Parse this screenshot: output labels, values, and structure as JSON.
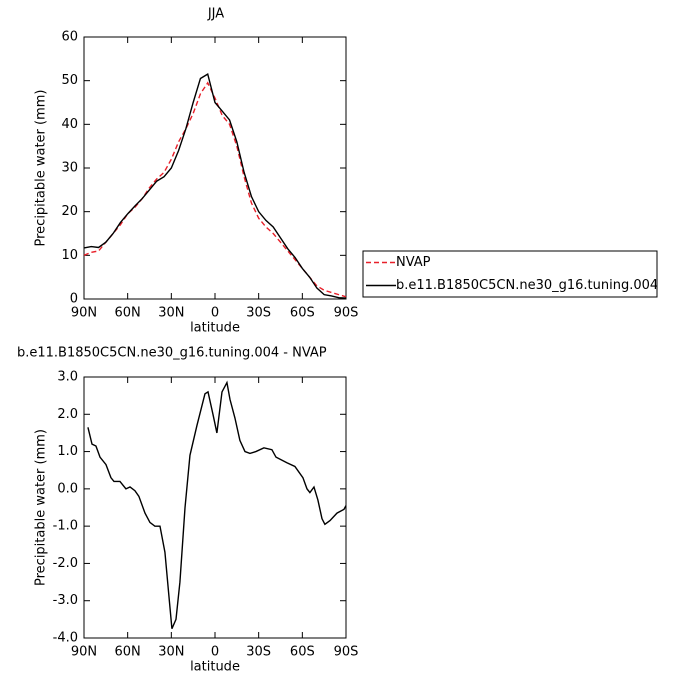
{
  "chart_data": [
    {
      "type": "line",
      "title": "JJA",
      "xlabel": "latitude",
      "ylabel": "Precipitable water (mm)",
      "x": [
        90,
        85,
        80,
        75,
        70,
        65,
        60,
        55,
        50,
        45,
        40,
        35,
        30,
        25,
        20,
        15,
        10,
        5,
        0,
        -5,
        -10,
        -15,
        -20,
        -25,
        -30,
        -35,
        -40,
        -45,
        -50,
        -55,
        -60,
        -65,
        -70,
        -75,
        -80,
        -85,
        -90
      ],
      "series": [
        {
          "name": "NVAP",
          "color": "#e8202a",
          "dash": true,
          "values": [
            10,
            10.7,
            11,
            13,
            15,
            17,
            19.5,
            21,
            23,
            25.5,
            27.5,
            29,
            32,
            36,
            39,
            42.5,
            47,
            49.5,
            46,
            42,
            40,
            35,
            28,
            22,
            18.5,
            16.5,
            15,
            13,
            11,
            9,
            7,
            5,
            3,
            2,
            1.5,
            1,
            0.5
          ]
        },
        {
          "name": "b.e11.B1850C5CN.ne30_g16.tuning.004",
          "color": "#000000",
          "dash": false,
          "values": [
            11.7,
            12,
            11.8,
            13,
            15,
            17.5,
            19.5,
            21.3,
            23,
            25,
            27,
            28,
            30,
            34,
            39,
            45,
            50.5,
            51.5,
            45,
            43,
            41,
            36,
            29,
            23.5,
            20,
            18,
            16.5,
            14,
            11.5,
            9.5,
            7,
            5,
            2.5,
            1,
            0.7,
            0.3,
            0.2
          ]
        }
      ],
      "xlim": [
        90,
        -90
      ],
      "xticks": [
        {
          "value": 90,
          "label": "90N"
        },
        {
          "value": 60,
          "label": "60N"
        },
        {
          "value": 30,
          "label": "30N"
        },
        0,
        {
          "value": -30,
          "label": "30S"
        },
        {
          "value": -60,
          "label": "60S"
        },
        {
          "value": -90,
          "label": "90S"
        }
      ],
      "ylim": [
        0,
        60
      ],
      "yticks": [
        0,
        10,
        20,
        30,
        40,
        50,
        60
      ],
      "legend": "right"
    },
    {
      "type": "line",
      "title": "b.e11.B1850C5CN.ne30_g16.tuning.004 - NVAP",
      "xlabel": "latitude",
      "ylabel": "Precipitable water (mm)",
      "x": [
        87.3,
        84.5,
        81.8,
        79,
        74.9,
        71.5,
        69.4,
        65.3,
        61.2,
        58.4,
        55,
        52.3,
        48.1,
        44.7,
        41.3,
        37.8,
        34.4,
        31.6,
        29.6,
        26.8,
        24.1,
        20.6,
        17.2,
        12.4,
        6.9,
        4.8,
        1.4,
        -1.3,
        -4.8,
        -8.2,
        -10.3,
        -13.7,
        -17.1,
        -20.6,
        -24,
        -28.1,
        -33.6,
        -39.1,
        -41.9,
        -49.4,
        -54.9,
        -60.4,
        -63.2,
        -65.2,
        -68,
        -70.7,
        -73.5,
        -75.5,
        -79,
        -83.8,
        -88.6,
        -90
      ],
      "series": [
        {
          "color": "#000000",
          "dash": false,
          "values": [
            1.65,
            1.2,
            1.15,
            0.85,
            0.65,
            0.3,
            0.2,
            0.2,
            0,
            0.05,
            -0.05,
            -0.2,
            -0.65,
            -0.9,
            -1,
            -1,
            -1.7,
            -2.9,
            -3.75,
            -3.5,
            -2.5,
            -0.5,
            0.9,
            1.7,
            2.55,
            2.6,
            2,
            1.5,
            2.6,
            2.85,
            2.4,
            1.9,
            1.3,
            1,
            0.95,
            1,
            1.1,
            1.05,
            0.85,
            0.7,
            0.6,
            0.3,
            0,
            -0.1,
            0.05,
            -0.3,
            -0.8,
            -0.95,
            -0.85,
            -0.65,
            -0.55,
            -0.45
          ]
        }
      ],
      "xlim": [
        90,
        -90
      ],
      "xticks": [
        {
          "value": 90,
          "label": "90N"
        },
        {
          "value": 60,
          "label": "60N"
        },
        {
          "value": 30,
          "label": "30N"
        },
        0,
        {
          "value": -30,
          "label": "30S"
        },
        {
          "value": -60,
          "label": "60S"
        },
        {
          "value": -90,
          "label": "90S"
        }
      ],
      "ylim": [
        -4,
        3
      ],
      "yticks": [
        {
          "value": -4,
          "label": "-4.0"
        },
        {
          "value": -3,
          "label": "-3.0"
        },
        {
          "value": -2,
          "label": "-2.0"
        },
        {
          "value": -1,
          "label": "-1.0"
        },
        {
          "value": 0,
          "label": "0.0"
        },
        {
          "value": 1,
          "label": "1.0"
        },
        {
          "value": 2,
          "label": "2.0"
        },
        {
          "value": 3,
          "label": "3.0"
        }
      ]
    }
  ]
}
